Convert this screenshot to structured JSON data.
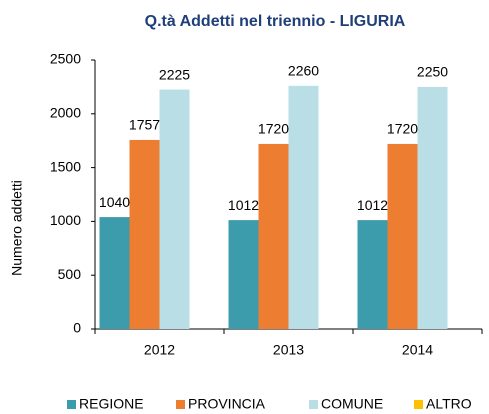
{
  "chart_data": {
    "type": "bar",
    "title": "Q.tà Addetti nel triennio - LIGURIA",
    "y_label": "Numero addetti",
    "categories": [
      "2012",
      "2013",
      "2014"
    ],
    "series": [
      {
        "name": "REGIONE",
        "color": "#3d9cab",
        "values": [
          1040,
          1012,
          1012
        ]
      },
      {
        "name": "PROVINCIA",
        "color": "#ed7d31",
        "values": [
          1757,
          1720,
          1720
        ]
      },
      {
        "name": "COMUNE",
        "color": "#b9dee6",
        "values": [
          2225,
          2260,
          2250
        ]
      },
      {
        "name": "ALTRO",
        "color": "#ffc000",
        "values": [
          null,
          null,
          null
        ]
      }
    ],
    "ylim": [
      0,
      2500
    ],
    "yticks": [
      0,
      500,
      1000,
      1500,
      2000,
      2500
    ],
    "grid": false,
    "legend": "bottom"
  }
}
